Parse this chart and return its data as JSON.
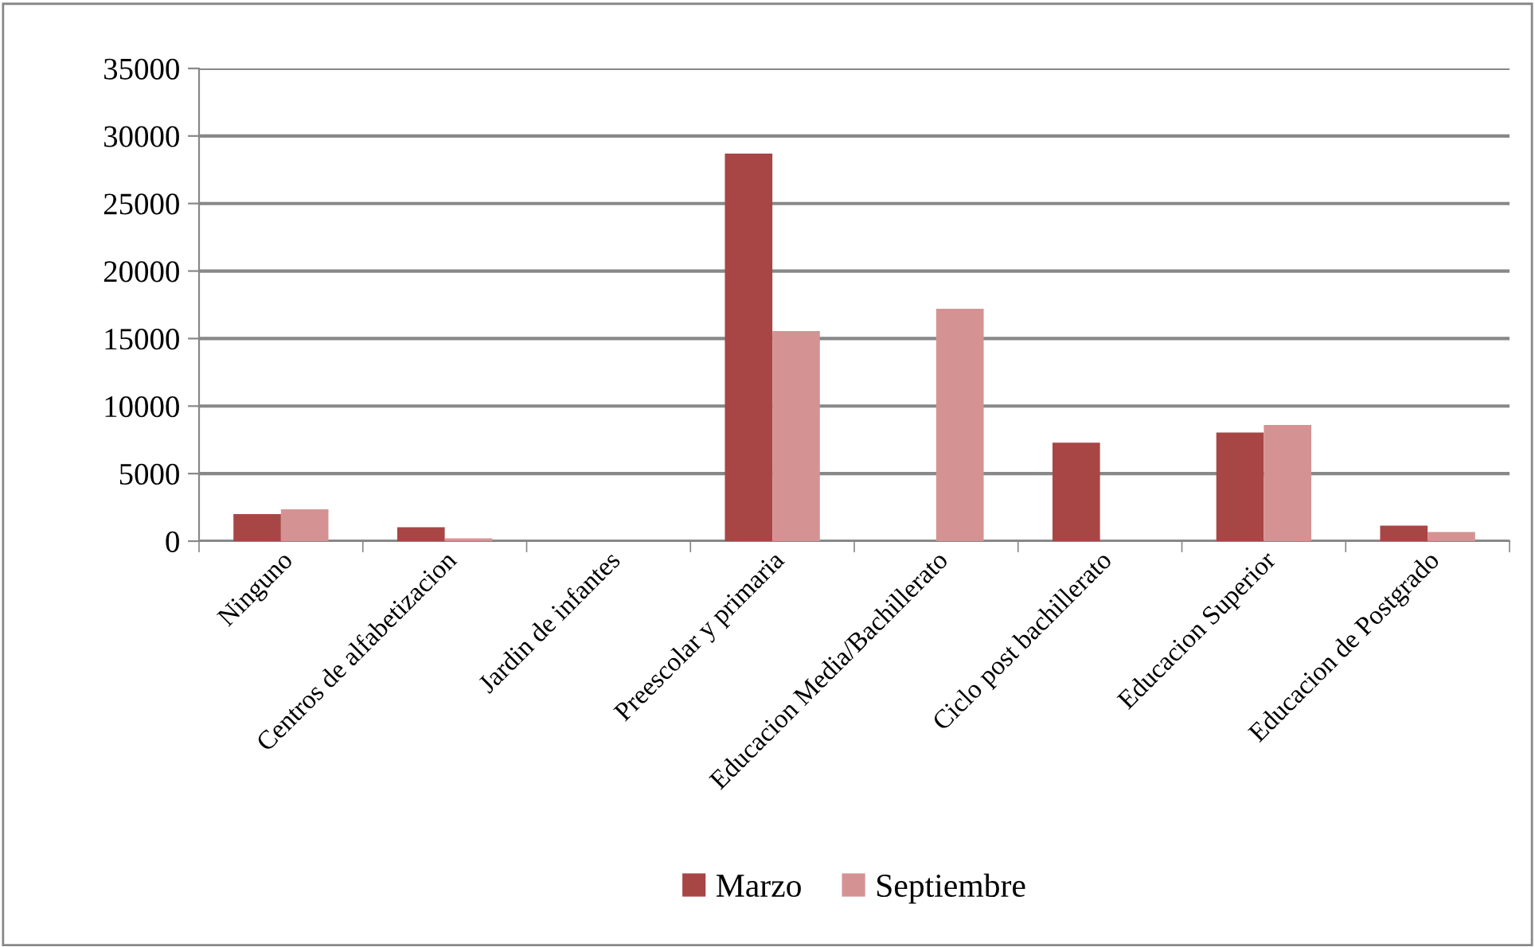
{
  "chart_data": {
    "type": "bar",
    "categories": [
      "Ninguno",
      "Centros de alfabetizacion",
      "Jardin de infantes",
      "Preescolar y primaria",
      "Educacion Media/Bachillerato",
      "Ciclo post bachillerato",
      "Educacion Superior",
      "Educacion de Postgrado"
    ],
    "series": [
      {
        "name": "Marzo",
        "color": "#a84646",
        "values": [
          2000,
          1030,
          0,
          28700,
          0,
          7290,
          8040,
          1150
        ]
      },
      {
        "name": "Septiembre",
        "color": "#d49392",
        "values": [
          2350,
          200,
          0,
          15550,
          17200,
          0,
          8600,
          680
        ]
      }
    ],
    "ylim": [
      0,
      35000
    ],
    "yticks": [
      0,
      5000,
      10000,
      15000,
      20000,
      25000,
      30000,
      35000
    ],
    "grid": "y",
    "legend": "bottom"
  }
}
